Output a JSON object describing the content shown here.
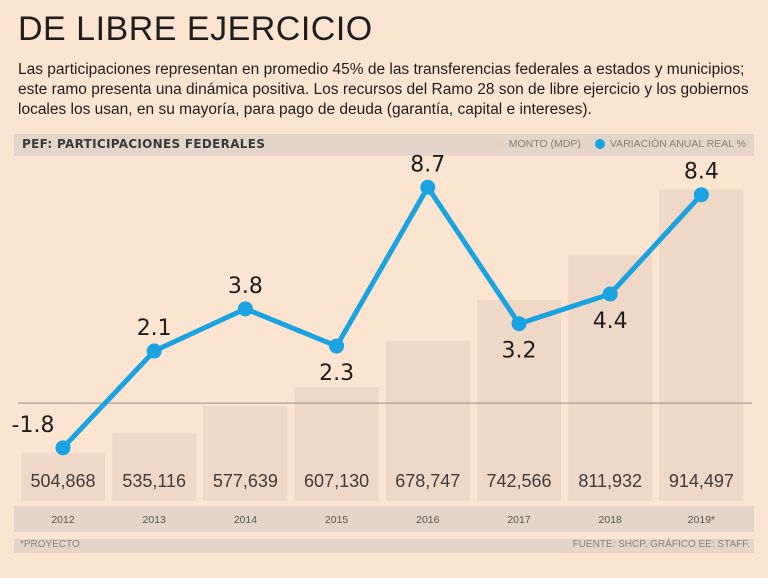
{
  "title": "DE LIBRE EJERCICIO",
  "subtitle": "Las participaciones representan en promedio 45% de las transferencias federales a estados y municipios; este ramo presenta una dinámica positiva. Los recursos del Ramo 28 son de libre ejercicio y los gobiernos locales los usan, en su mayoría, para pago de deuda (garantía, capital e intereses).",
  "header": {
    "label": "PEF: PARTICIPACIONES FEDERALES",
    "legend_monto": "MONTO (MDP)",
    "legend_variacion": "VARIACIÓN ANUAL REAL %"
  },
  "footer": {
    "note": "*PROYECTO",
    "source": "FUENTE: SHCP. GRÁFICO EE: STAFF."
  },
  "colors": {
    "background": "#fbe4d0",
    "bar": "#f0d8c6",
    "line": "#1aa3e0",
    "band": "#e3d5c9"
  },
  "chart_data": {
    "type": "bar+line",
    "title": "PEF: PARTICIPACIONES FEDERALES",
    "categories": [
      "2012",
      "2013",
      "2014",
      "2015",
      "2016",
      "2017",
      "2018",
      "2019*"
    ],
    "series": [
      {
        "name": "MONTO (MDP)",
        "type": "bar",
        "values": [
          504868,
          535116,
          577639,
          607130,
          678747,
          742566,
          811932,
          914497
        ],
        "labels": [
          "504,868",
          "535,116",
          "577,639",
          "607,130",
          "678,747",
          "742,566",
          "811,932",
          "914,497"
        ]
      },
      {
        "name": "VARIACIÓN ANUAL REAL %",
        "type": "line",
        "values": [
          -1.8,
          2.1,
          3.8,
          2.3,
          8.7,
          3.2,
          4.4,
          8.4
        ],
        "labels": [
          "-1.8",
          "2.1",
          "3.8",
          "2.3",
          "8.7",
          "3.2",
          "4.4",
          "8.4"
        ]
      }
    ],
    "bar_ylim": [
      430000,
      960000
    ],
    "line_ylim": [
      -3.5,
      10
    ],
    "grid": false,
    "legend": "top-right"
  }
}
